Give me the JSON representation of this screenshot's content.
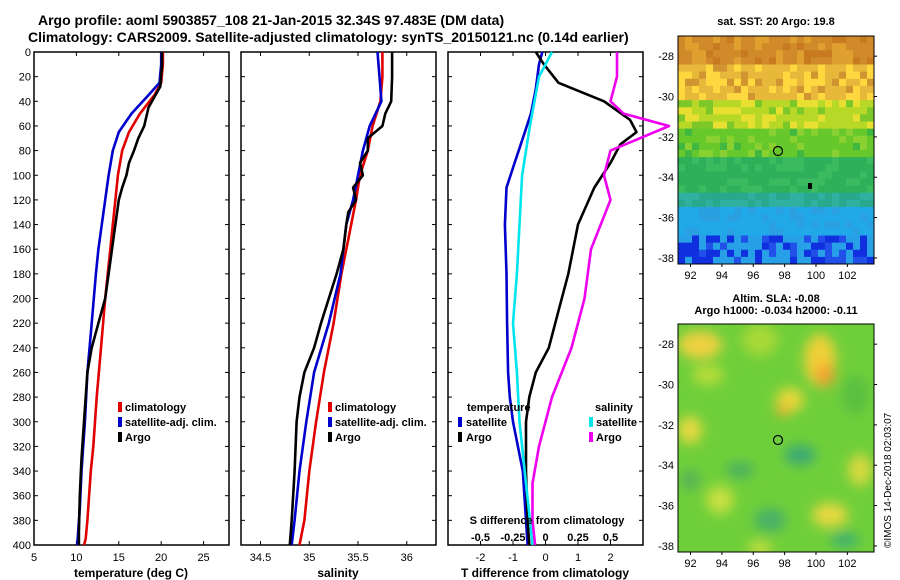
{
  "header": {
    "line1": "Argo profile: aoml 5903857_108 21-Jan-2015 32.34S 97.483E (DM data)",
    "line2": "Climatology: CARS2009. Satellite-adjusted climatology: synTS_20150121.nc (0.14d earlier)"
  },
  "colors": {
    "climatology": "#e00000",
    "satellite": "#0000cc",
    "argo": "#000000",
    "sal_satellite": "#00e5ee",
    "sal_argo": "#ee00ee"
  },
  "chart_data": [
    {
      "type": "line",
      "id": "temp",
      "xlabel": "temperature (deg C)",
      "ylabel": "",
      "xlim": [
        5,
        28
      ],
      "ylim": [
        400,
        0
      ],
      "xticks": [
        5,
        10,
        15,
        20,
        25
      ],
      "xtick_labels": [
        "5",
        "10",
        "15",
        "20",
        "25"
      ],
      "yticks": [
        0,
        20,
        40,
        60,
        80,
        100,
        120,
        140,
        160,
        180,
        200,
        220,
        240,
        260,
        280,
        300,
        320,
        340,
        360,
        380,
        400
      ],
      "legend": [
        "climatology",
        "satellite-adj. clim.",
        "Argo"
      ],
      "series": [
        {
          "name": "climatology",
          "color": "#e00000",
          "x": [
            20.2,
            20.2,
            20.0,
            19.2,
            17.5,
            16.2,
            15.4,
            14.9,
            14.6,
            14.3,
            14.0,
            13.4,
            12.9,
            12.4,
            12.0,
            11.7,
            11.5,
            11.3,
            11.1,
            10.9
          ],
          "y": [
            0,
            10,
            25,
            35,
            50,
            65,
            80,
            100,
            120,
            140,
            160,
            200,
            240,
            280,
            320,
            340,
            360,
            380,
            395,
            400
          ]
        },
        {
          "name": "satellite-adj. clim.",
          "color": "#0000cc",
          "x": [
            20.0,
            20.0,
            19.8,
            18.5,
            16.5,
            15.0,
            14.3,
            13.8,
            13.4,
            13.0,
            12.6,
            12.3,
            11.8,
            11.3,
            11.0,
            10.6,
            10.4,
            10.2,
            10.1
          ],
          "y": [
            0,
            10,
            25,
            35,
            50,
            65,
            80,
            100,
            120,
            140,
            160,
            180,
            220,
            260,
            300,
            340,
            370,
            390,
            400
          ]
        },
        {
          "name": "Argo",
          "color": "#000000",
          "x": [
            20.1,
            20.1,
            19.9,
            18.5,
            18.0,
            17.3,
            16.8,
            16.2,
            15.9,
            15.4,
            15.0,
            14.6,
            14.2,
            13.8,
            13.4,
            12.6,
            11.8,
            11.3,
            11.1,
            10.9,
            10.6,
            10.4,
            10.3,
            10.3
          ],
          "y": [
            0,
            10,
            28,
            45,
            60,
            70,
            80,
            90,
            100,
            110,
            120,
            140,
            160,
            180,
            200,
            220,
            240,
            260,
            280,
            300,
            330,
            360,
            390,
            400
          ]
        }
      ]
    },
    {
      "type": "line",
      "id": "sal",
      "xlabel": "salinity",
      "ylabel": "",
      "xlim": [
        34.3,
        36.3
      ],
      "ylim": [
        400,
        0
      ],
      "xticks": [
        34.5,
        35,
        35.5,
        36
      ],
      "xtick_labels": [
        "34.5",
        "35",
        "35.5",
        "36"
      ],
      "yticks": [
        0,
        20,
        40,
        60,
        80,
        100,
        120,
        140,
        160,
        180,
        200,
        220,
        240,
        260,
        280,
        300,
        320,
        340,
        360,
        380,
        400
      ],
      "legend": [
        "climatology",
        "satellite-adj. clim.",
        "Argo"
      ],
      "series": [
        {
          "name": "climatology",
          "color": "#e00000",
          "x": [
            35.75,
            35.75,
            35.73,
            35.65,
            35.6,
            35.52,
            35.48,
            35.43,
            35.38,
            35.33,
            35.25,
            35.15,
            35.07,
            35.0,
            34.95,
            34.9
          ],
          "y": [
            0,
            20,
            40,
            60,
            80,
            100,
            120,
            140,
            160,
            180,
            220,
            260,
            300,
            340,
            380,
            400
          ]
        },
        {
          "name": "satellite-adj. clim.",
          "color": "#0000cc",
          "x": [
            35.7,
            35.72,
            35.74,
            35.62,
            35.55,
            35.5,
            35.45,
            35.38,
            35.32,
            35.2,
            35.05,
            34.97,
            34.9,
            34.85,
            34.82
          ],
          "y": [
            0,
            20,
            40,
            60,
            80,
            100,
            120,
            140,
            180,
            220,
            260,
            300,
            340,
            380,
            400
          ]
        },
        {
          "name": "Argo",
          "color": "#000000",
          "x": [
            35.85,
            35.85,
            35.84,
            35.78,
            35.75,
            35.6,
            35.6,
            35.52,
            35.55,
            35.45,
            35.48,
            35.4,
            35.38,
            35.35,
            35.28,
            35.2,
            35.12,
            35.05,
            34.95,
            34.9,
            34.87,
            34.85,
            34.82,
            34.8
          ],
          "y": [
            0,
            20,
            40,
            50,
            60,
            70,
            80,
            90,
            100,
            110,
            120,
            130,
            140,
            160,
            180,
            200,
            220,
            240,
            260,
            280,
            300,
            340,
            380,
            400
          ]
        }
      ]
    },
    {
      "type": "line",
      "id": "diff",
      "xlabel": "T difference from climatology",
      "x2label": "S difference from climatology",
      "xlim": [
        -3,
        3
      ],
      "ylim": [
        400,
        0
      ],
      "xticks": [
        -2,
        -1,
        0,
        1,
        2
      ],
      "xtick_labels": [
        "-2",
        "-1",
        "0",
        "1",
        "2"
      ],
      "x2ticks": [
        -0.5,
        -0.25,
        0,
        0.25,
        0.5
      ],
      "x2tick_labels": [
        "-0.5",
        "-0.25",
        "0",
        "0.25",
        "0.5"
      ],
      "yticks": [
        0,
        20,
        40,
        60,
        80,
        100,
        120,
        140,
        160,
        180,
        200,
        220,
        240,
        260,
        280,
        300,
        320,
        340,
        360,
        380,
        400
      ],
      "legend_temperature_title": "temperature",
      "legend_salinity_title": "salinity",
      "legend_temperature": [
        "satellite",
        "Argo"
      ],
      "legend_salinity": [
        "satellite",
        "Argo"
      ],
      "series": [
        {
          "name": "T satellite",
          "color": "#0000cc",
          "x": [
            -0.1,
            -0.2,
            -0.3,
            -0.45,
            -0.7,
            -0.95,
            -1.2,
            -1.25,
            -1.2,
            -1.18,
            -1.15,
            -1.1,
            -1.0,
            -0.85,
            -0.7,
            -0.65,
            -0.6,
            -0.55
          ],
          "y": [
            0,
            10,
            30,
            50,
            70,
            90,
            110,
            140,
            180,
            220,
            260,
            280,
            300,
            320,
            340,
            360,
            380,
            400
          ]
        },
        {
          "name": "T Argo",
          "color": "#000000",
          "x": [
            -0.3,
            -0.05,
            0.4,
            1.8,
            2.6,
            2.8,
            2.3,
            2.0,
            1.5,
            1.0,
            0.7,
            0.4,
            0.1,
            -0.3,
            -0.5,
            -0.6,
            -0.6,
            -0.55,
            -0.5
          ],
          "y": [
            0,
            10,
            25,
            40,
            55,
            65,
            75,
            90,
            110,
            140,
            180,
            210,
            240,
            260,
            280,
            300,
            340,
            380,
            400
          ]
        },
        {
          "name": "S satellite",
          "color": "#00e5ee",
          "x": [
            0.05,
            -0.05,
            -0.12,
            -0.18,
            -0.2,
            -0.22,
            -0.25,
            -0.22,
            -0.2,
            -0.18,
            -0.15,
            -0.12,
            -0.1
          ],
          "y": [
            0,
            20,
            60,
            100,
            140,
            180,
            220,
            260,
            300,
            320,
            350,
            380,
            400
          ]
        },
        {
          "name": "S Argo",
          "color": "#ee00ee",
          "x": [
            0.55,
            0.55,
            0.5,
            0.6,
            0.95,
            0.5,
            0.45,
            0.5,
            0.35,
            0.3,
            0.2,
            0.05,
            -0.05,
            -0.1,
            -0.1,
            -0.08
          ],
          "y": [
            0,
            20,
            40,
            50,
            60,
            80,
            100,
            120,
            160,
            200,
            240,
            280,
            320,
            350,
            380,
            400
          ]
        }
      ]
    }
  ],
  "maps": {
    "sst": {
      "title": "sat. SST: 20 Argo: 19.8",
      "lat_labels": [
        "-28",
        "-30",
        "-32",
        "-34",
        "-36",
        "-38"
      ],
      "lon_labels": [
        "92",
        "94",
        "96",
        "98",
        "100",
        "102"
      ]
    },
    "sla": {
      "title1": "Altim. SLA: -0.08",
      "title2": "Argo h1000: -0.034 h2000: -0.11",
      "lat_labels": [
        "-28",
        "-30",
        "-32",
        "-34",
        "-36",
        "-38"
      ],
      "lon_labels": [
        "92",
        "94",
        "96",
        "98",
        "100",
        "102"
      ]
    }
  },
  "stamp": "©IMOS 14-Dec-2018 02:03:07"
}
